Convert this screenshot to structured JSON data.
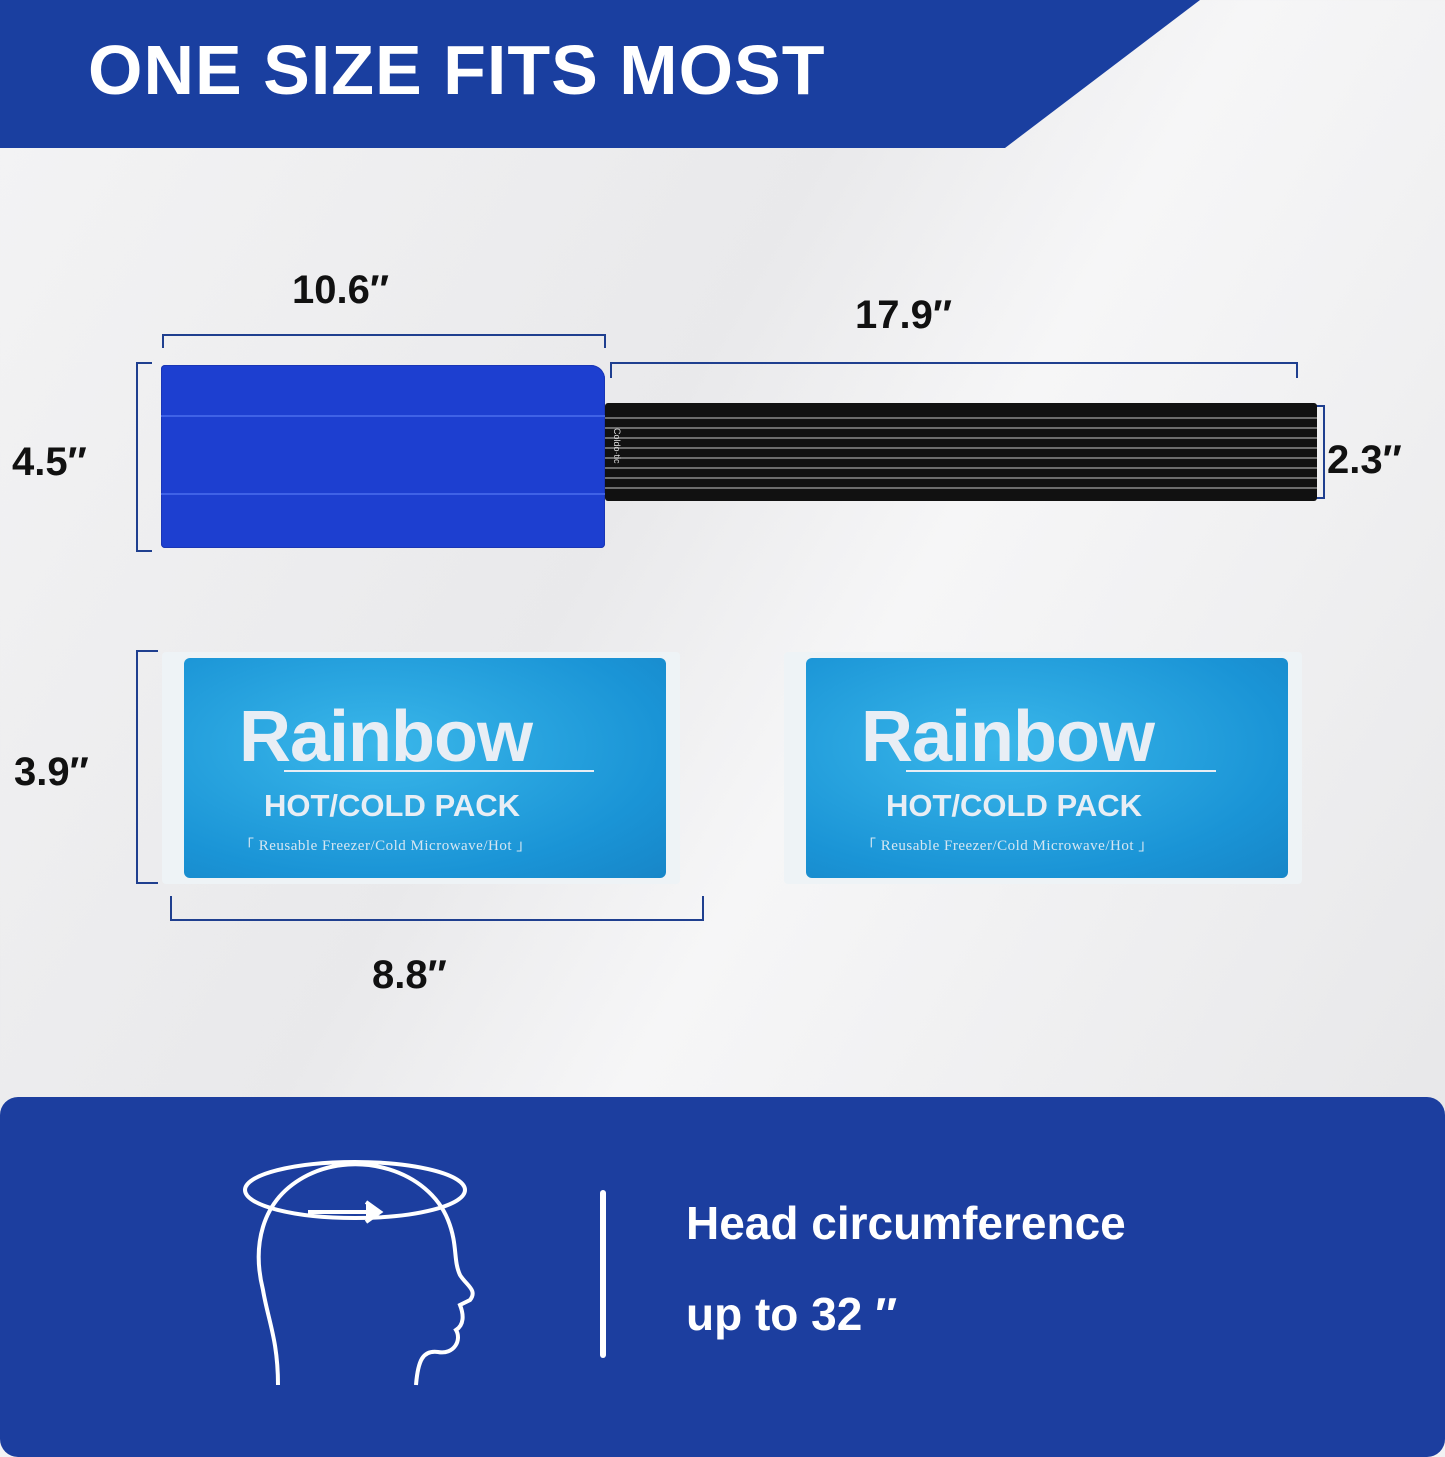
{
  "header": {
    "title": "ONE SIZE FITS MOST",
    "color": "#1a3fa0"
  },
  "dimensions": {
    "cover_width": "10.6″",
    "strap_length": "17.9″",
    "cover_height": "4.5″",
    "strap_height": "2.3″",
    "pack_height": "3.9″",
    "pack_width": "8.8″"
  },
  "product": {
    "strap_brand": "Coldo·tic",
    "gel_packs": [
      {
        "brand": "Rainbow",
        "type": "HOT/COLD PACK",
        "subtitle": "「 Reusable Freezer/Cold Microwave/Hot 」"
      },
      {
        "brand": "Rainbow",
        "type": "HOT/COLD PACK",
        "subtitle": "「 Reusable Freezer/Cold Microwave/Hot 」"
      }
    ]
  },
  "footer": {
    "line1": "Head circumference",
    "line2": "up to 32 ″",
    "icon": "head-circumference-icon",
    "color": "#1c3e9f"
  }
}
